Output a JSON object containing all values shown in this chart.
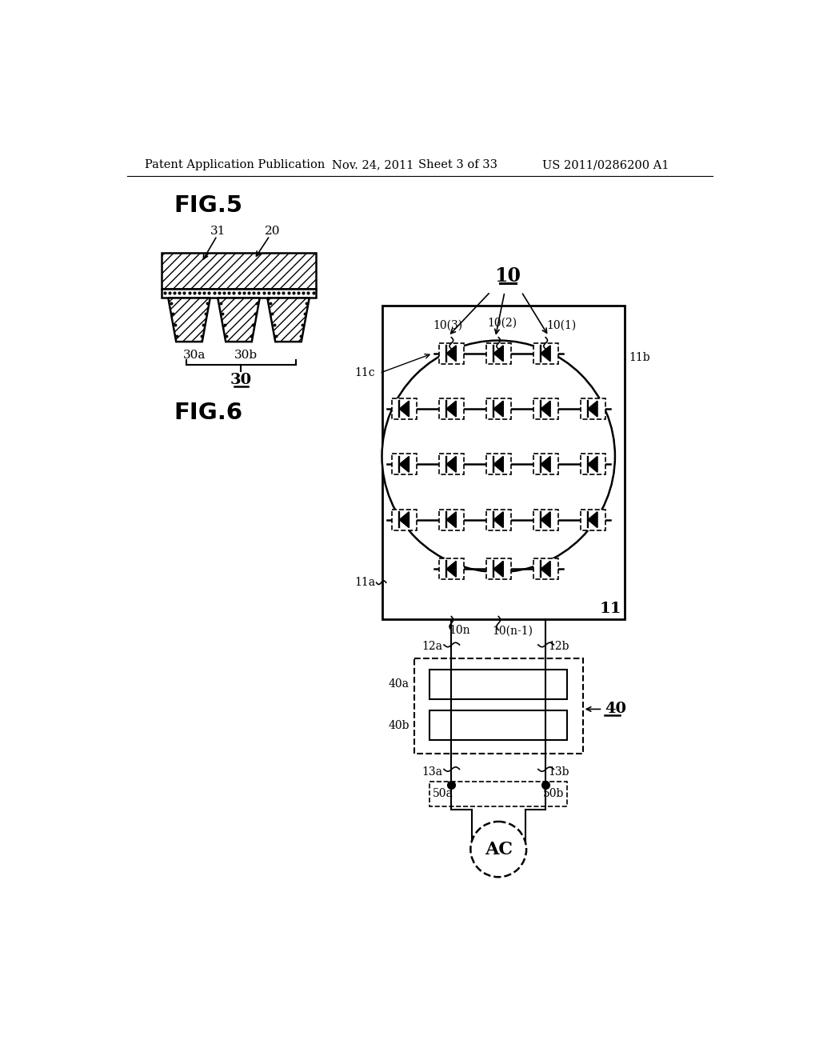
{
  "bg_color": "#ffffff",
  "header_text": "Patent Application Publication",
  "header_date": "Nov. 24, 2011",
  "header_sheet": "Sheet 3 of 33",
  "header_patent": "US 2011/0286200 A1",
  "fig5_title": "FIG.5",
  "fig6_title": "FIG.6",
  "label_10": "10",
  "label_11": "11",
  "label_20": "20",
  "label_31": "31",
  "label_30": "30",
  "label_30a": "30a",
  "label_30b": "30b",
  "label_10_1": "10(1)",
  "label_10_2": "10(2)",
  "label_10_3": "10(3)",
  "label_10n": "10n",
  "label_10n1": "10(n-1)",
  "label_11a": "11a",
  "label_11b": "11b",
  "label_11c": "11c",
  "label_12a": "12a",
  "label_12b": "12b",
  "label_13a": "13a",
  "label_13b": "13b",
  "label_40": "40",
  "label_40a": "40a",
  "label_40b": "40b",
  "label_50a": "50a",
  "label_50b": "50b",
  "label_AC": "AC"
}
